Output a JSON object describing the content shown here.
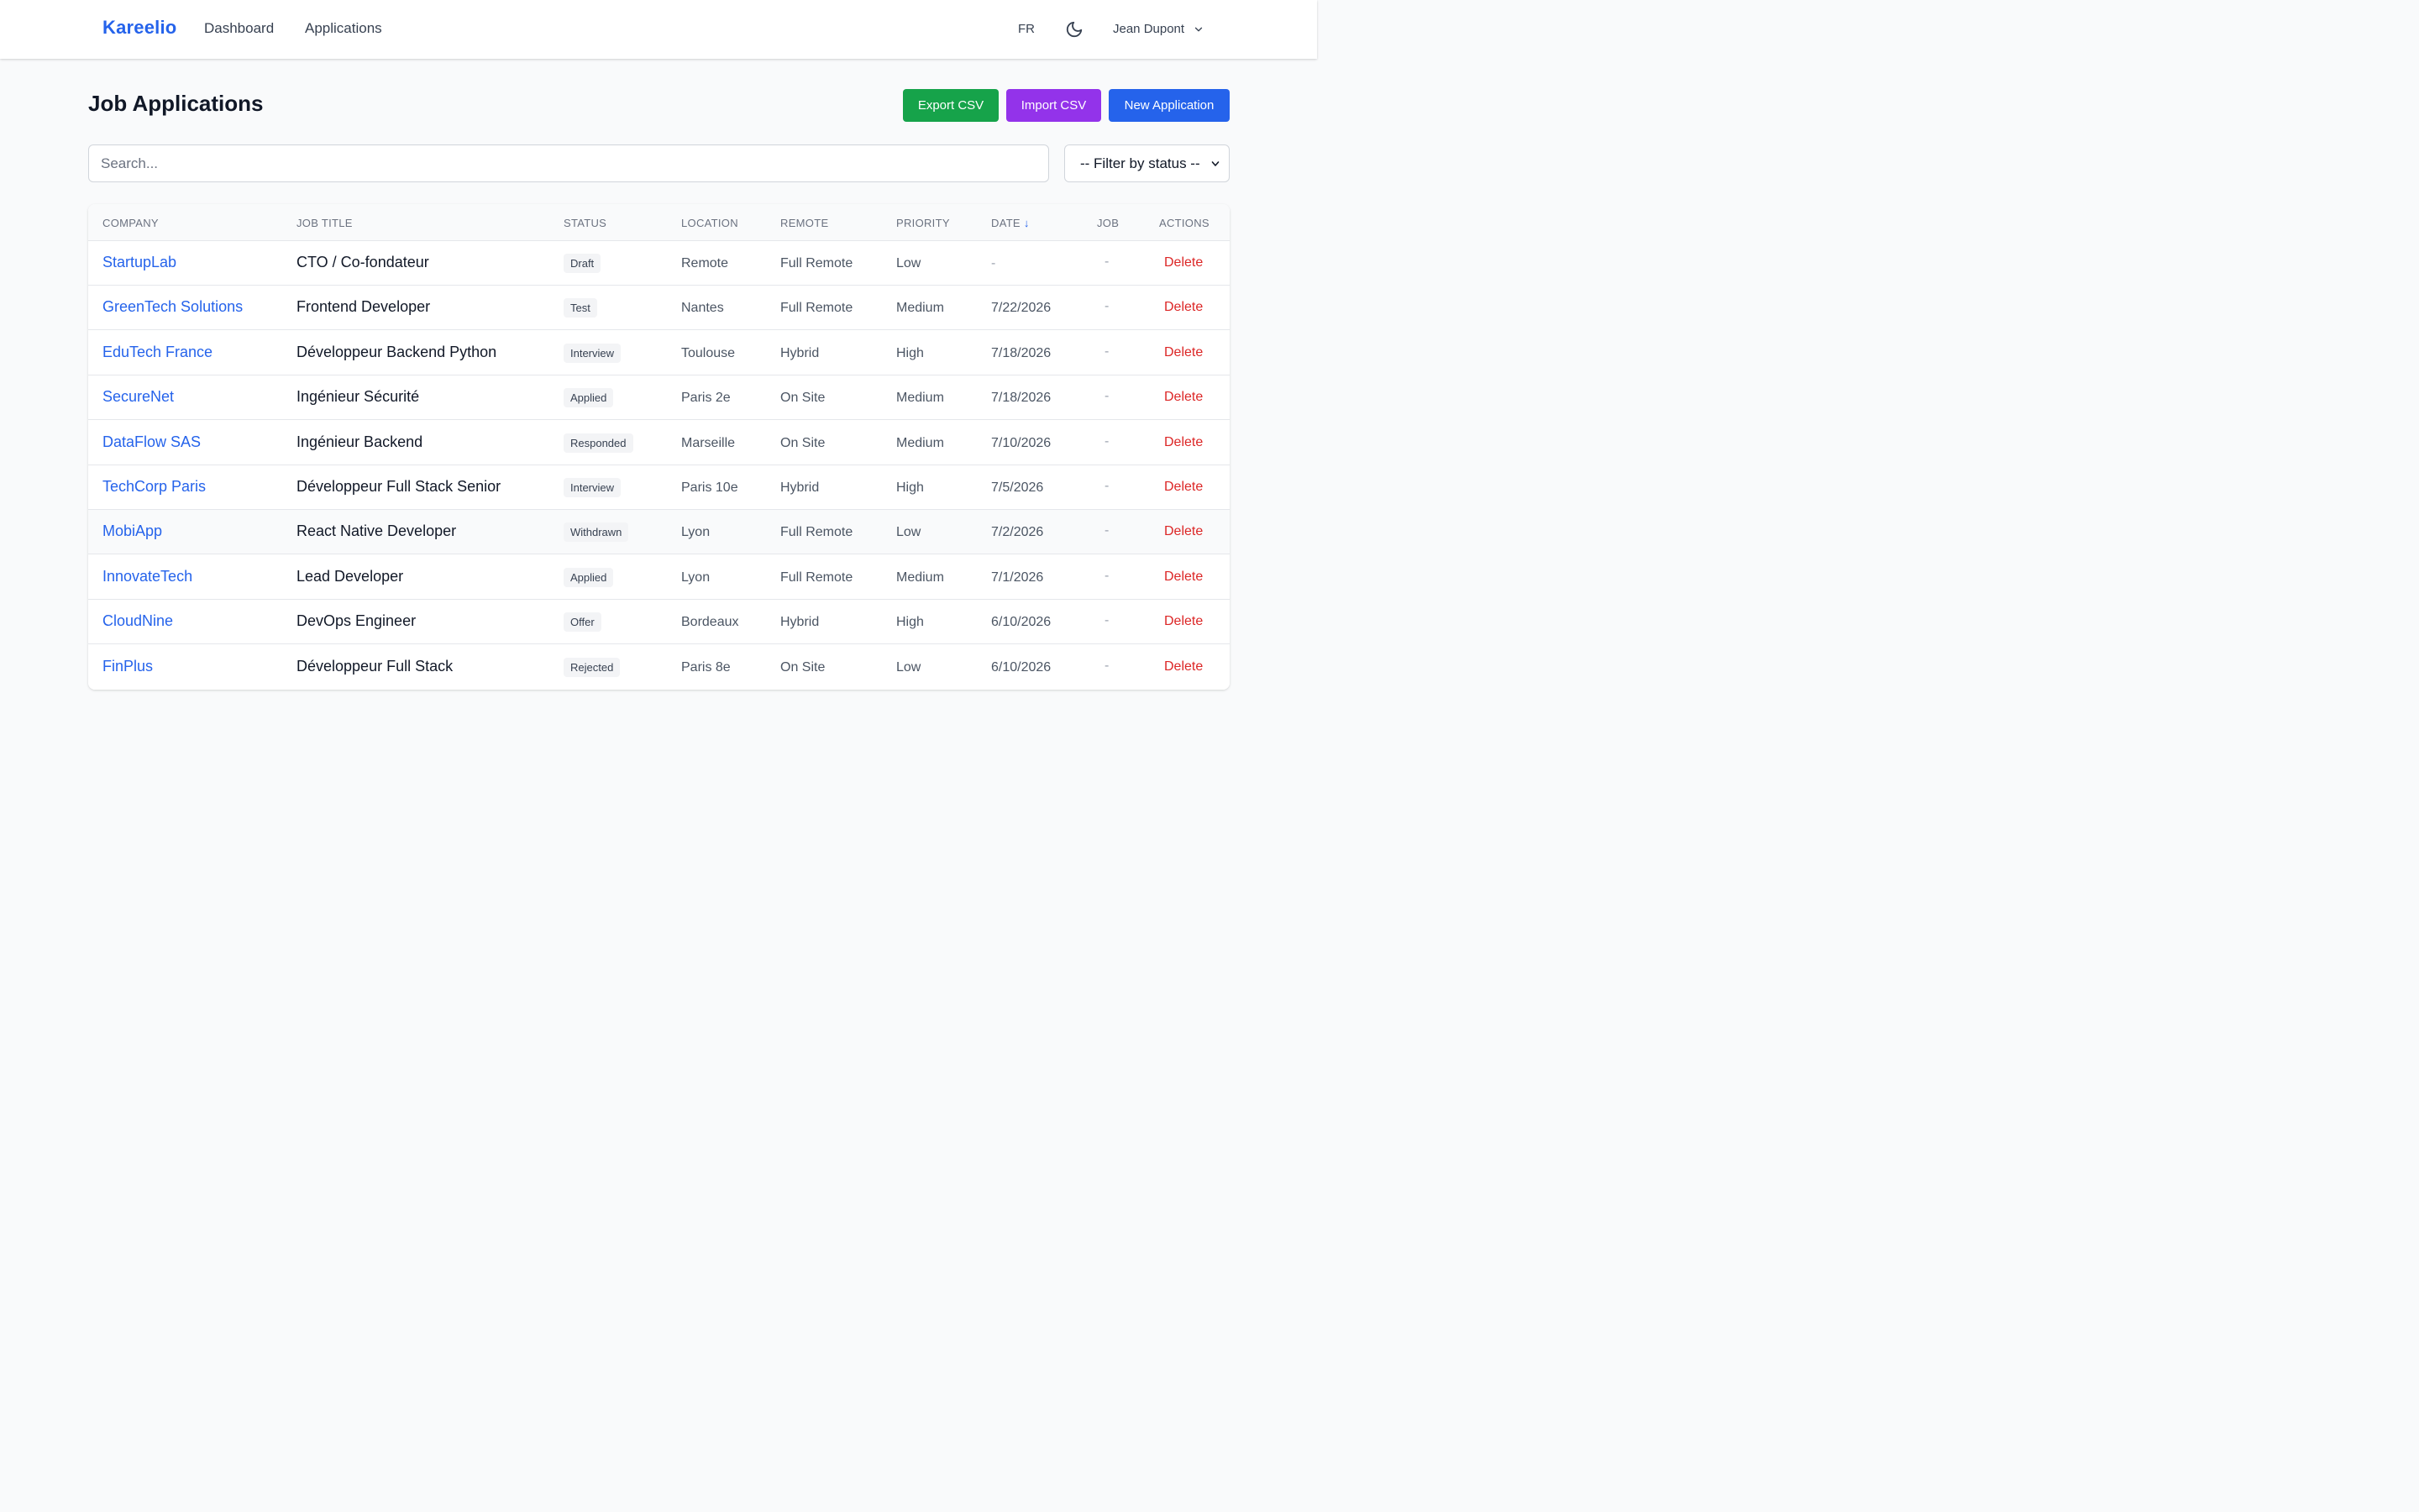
{
  "nav": {
    "brand": "Kareelio",
    "links": [
      "Dashboard",
      "Applications"
    ],
    "language": "FR",
    "user_name": "Jean Dupont"
  },
  "page": {
    "title": "Job Applications",
    "buttons": {
      "export": "Export CSV",
      "import": "Import CSV",
      "new": "New Application"
    },
    "search_placeholder": "Search...",
    "filter_label": "-- Filter by status --"
  },
  "colors": {
    "brand": "#2563eb",
    "export": "#16a34a",
    "import": "#9333ea",
    "new": "#2563eb",
    "delete": "#dc2626"
  },
  "table": {
    "headers": {
      "company": "COMPANY",
      "job_title": "JOB TITLE",
      "status": "STATUS",
      "location": "LOCATION",
      "remote": "REMOTE",
      "priority": "PRIORITY",
      "date": "DATE",
      "date_sort": "↓",
      "job": "JOB",
      "actions": "ACTIONS"
    },
    "rows": [
      {
        "company": "StartupLab",
        "job_title": "CTO / Co-fondateur",
        "status": "Draft",
        "location": "Remote",
        "remote": "Full Remote",
        "priority": "Low",
        "date": "-",
        "job": "-",
        "action": "Delete"
      },
      {
        "company": "GreenTech Solutions",
        "job_title": "Frontend Developer",
        "status": "Test",
        "location": "Nantes",
        "remote": "Full Remote",
        "priority": "Medium",
        "date": "7/22/2026",
        "job": "-",
        "action": "Delete"
      },
      {
        "company": "EduTech France",
        "job_title": "Développeur Backend Python",
        "status": "Interview",
        "location": "Toulouse",
        "remote": "Hybrid",
        "priority": "High",
        "date": "7/18/2026",
        "job": "-",
        "action": "Delete"
      },
      {
        "company": "SecureNet",
        "job_title": "Ingénieur Sécurité",
        "status": "Applied",
        "location": "Paris 2e",
        "remote": "On Site",
        "priority": "Medium",
        "date": "7/18/2026",
        "job": "-",
        "action": "Delete"
      },
      {
        "company": "DataFlow SAS",
        "job_title": "Ingénieur Backend",
        "status": "Responded",
        "location": "Marseille",
        "remote": "On Site",
        "priority": "Medium",
        "date": "7/10/2026",
        "job": "-",
        "action": "Delete"
      },
      {
        "company": "TechCorp Paris",
        "job_title": "Développeur Full Stack Senior",
        "status": "Interview",
        "location": "Paris 10e",
        "remote": "Hybrid",
        "priority": "High",
        "date": "7/5/2026",
        "job": "-",
        "action": "Delete"
      },
      {
        "company": "MobiApp",
        "job_title": "React Native Developer",
        "status": "Withdrawn",
        "location": "Lyon",
        "remote": "Full Remote",
        "priority": "Low",
        "date": "7/2/2026",
        "job": "-",
        "action": "Delete"
      },
      {
        "company": "InnovateTech",
        "job_title": "Lead Developer",
        "status": "Applied",
        "location": "Lyon",
        "remote": "Full Remote",
        "priority": "Medium",
        "date": "7/1/2026",
        "job": "-",
        "action": "Delete"
      },
      {
        "company": "CloudNine",
        "job_title": "DevOps Engineer",
        "status": "Offer",
        "location": "Bordeaux",
        "remote": "Hybrid",
        "priority": "High",
        "date": "6/10/2026",
        "job": "-",
        "action": "Delete"
      },
      {
        "company": "FinPlus",
        "job_title": "Développeur Full Stack",
        "status": "Rejected",
        "location": "Paris 8e",
        "remote": "On Site",
        "priority": "Low",
        "date": "6/10/2026",
        "job": "-",
        "action": "Delete"
      }
    ]
  }
}
